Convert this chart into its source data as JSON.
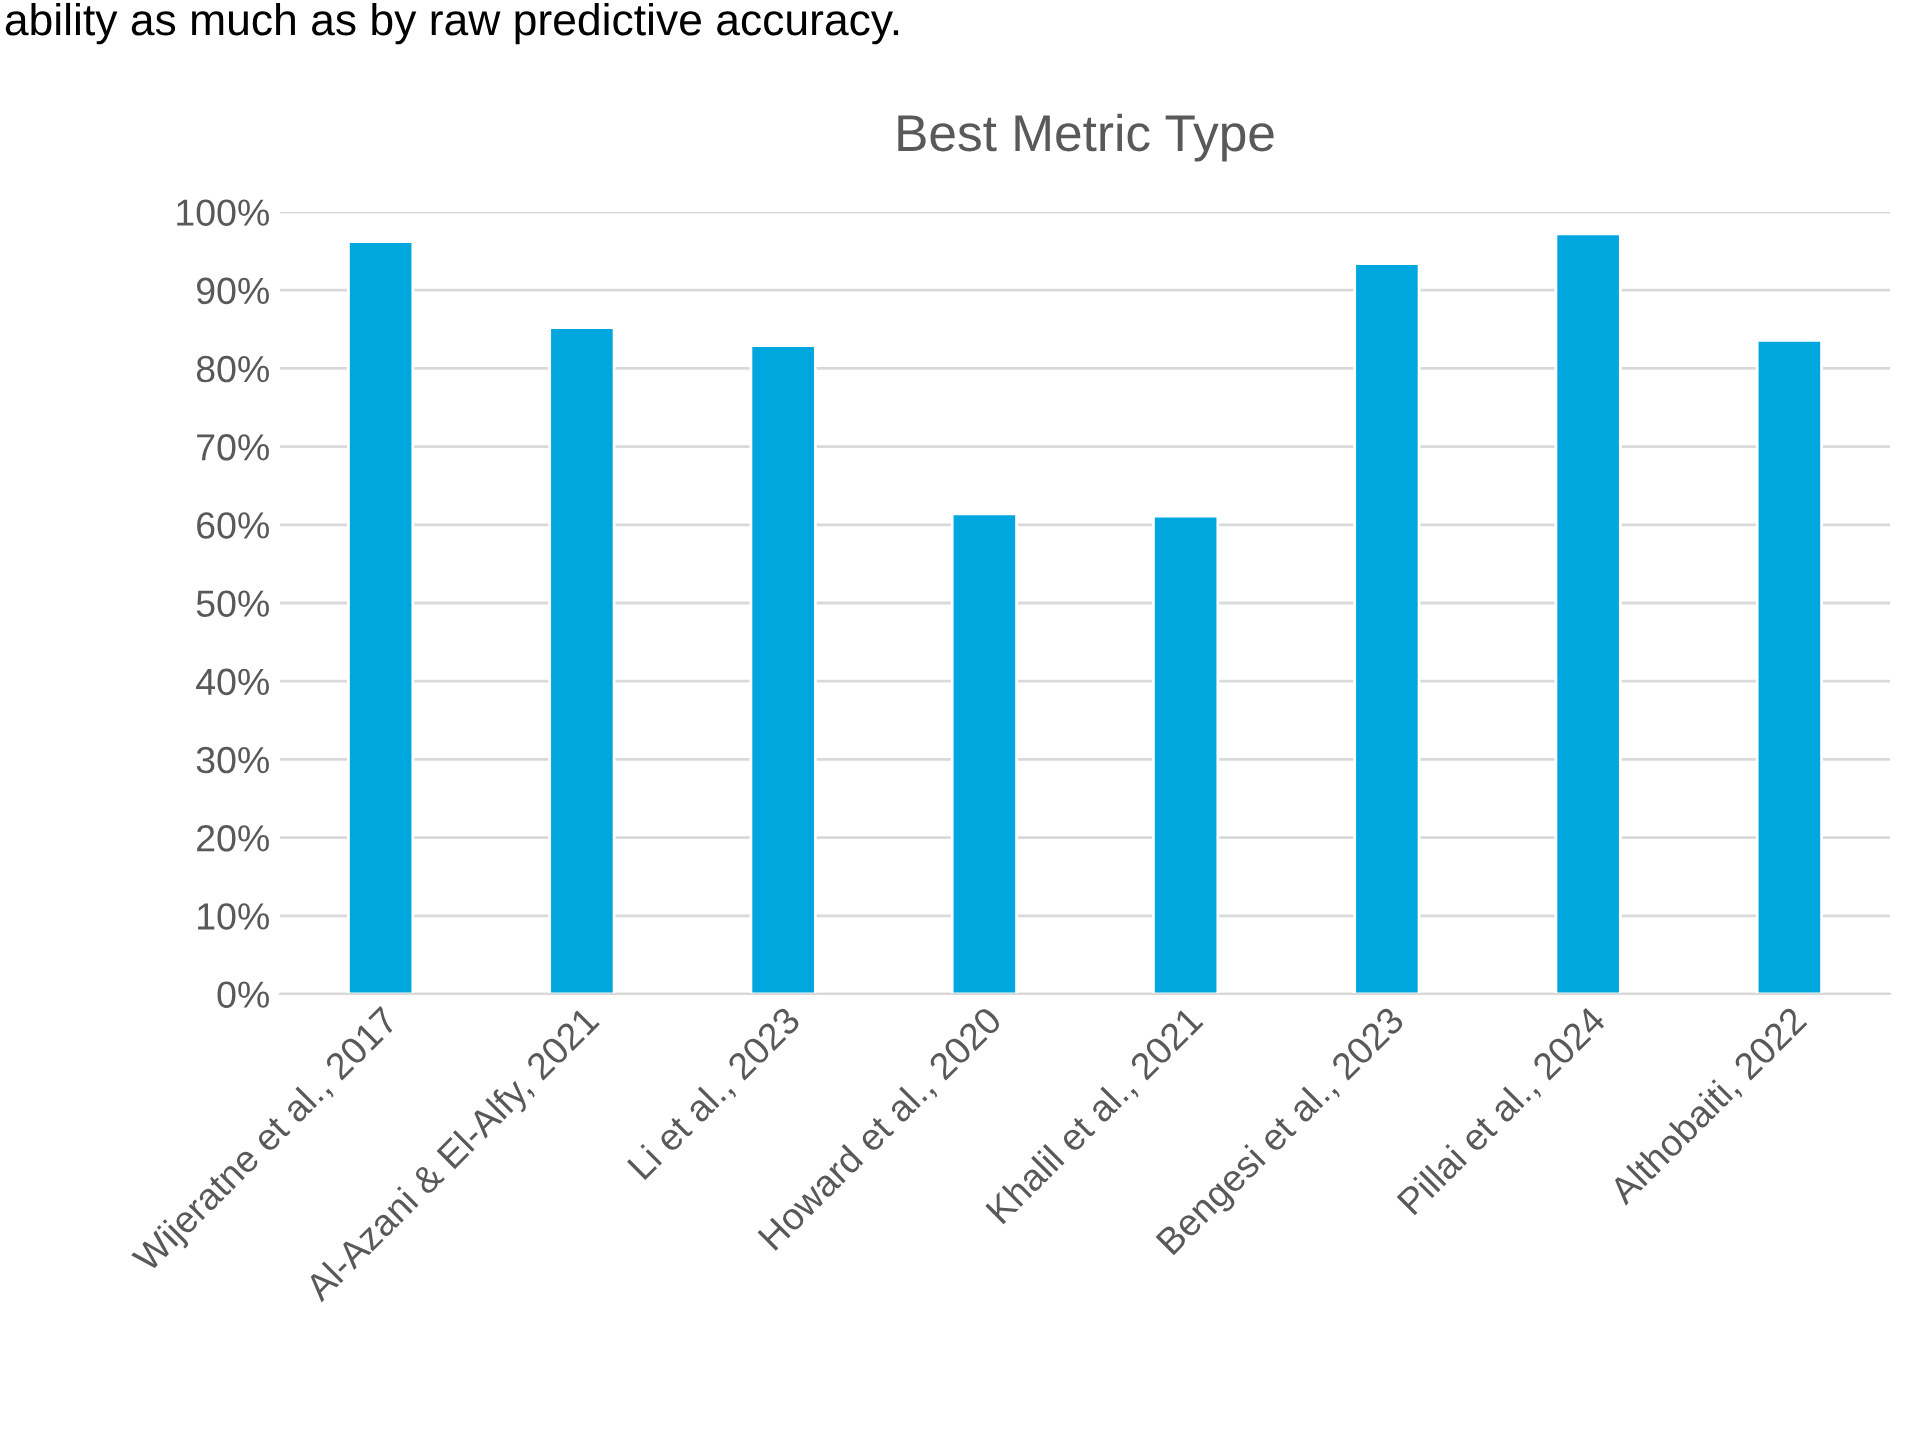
{
  "chart_data": {
    "type": "bar",
    "title": "Best Metric Type",
    "categories": [
      "Wijeratne et al., 2017",
      "Al-Azani & El-Alfy, 2021",
      "Li et al., 2023",
      "Howard et al., 2020",
      "Khalil et al., 2021",
      "Bengesi et al., 2023",
      "Pillai et al., 2024",
      "Althobaiti, 2022"
    ],
    "values": [
      96.2,
      85.2,
      82.9,
      61.4,
      61.1,
      93.4,
      97.2,
      83.6
    ],
    "color": "#00a6de",
    "ylim": [
      0,
      100
    ],
    "yticks": [
      {
        "value": 0,
        "label": "0%"
      },
      {
        "value": 10,
        "label": "10%"
      },
      {
        "value": 20,
        "label": "20%"
      },
      {
        "value": 30,
        "label": "30%"
      },
      {
        "value": 40,
        "label": "40%"
      },
      {
        "value": 50,
        "label": "50%"
      },
      {
        "value": 60,
        "label": "60%"
      },
      {
        "value": 70,
        "label": "70%"
      },
      {
        "value": 80,
        "label": "80%"
      },
      {
        "value": 90,
        "label": "90%"
      },
      {
        "value": 100,
        "label": "100%"
      }
    ],
    "grid": "y",
    "annotations": [
      "ability as much as by raw predictive accuracy."
    ]
  }
}
